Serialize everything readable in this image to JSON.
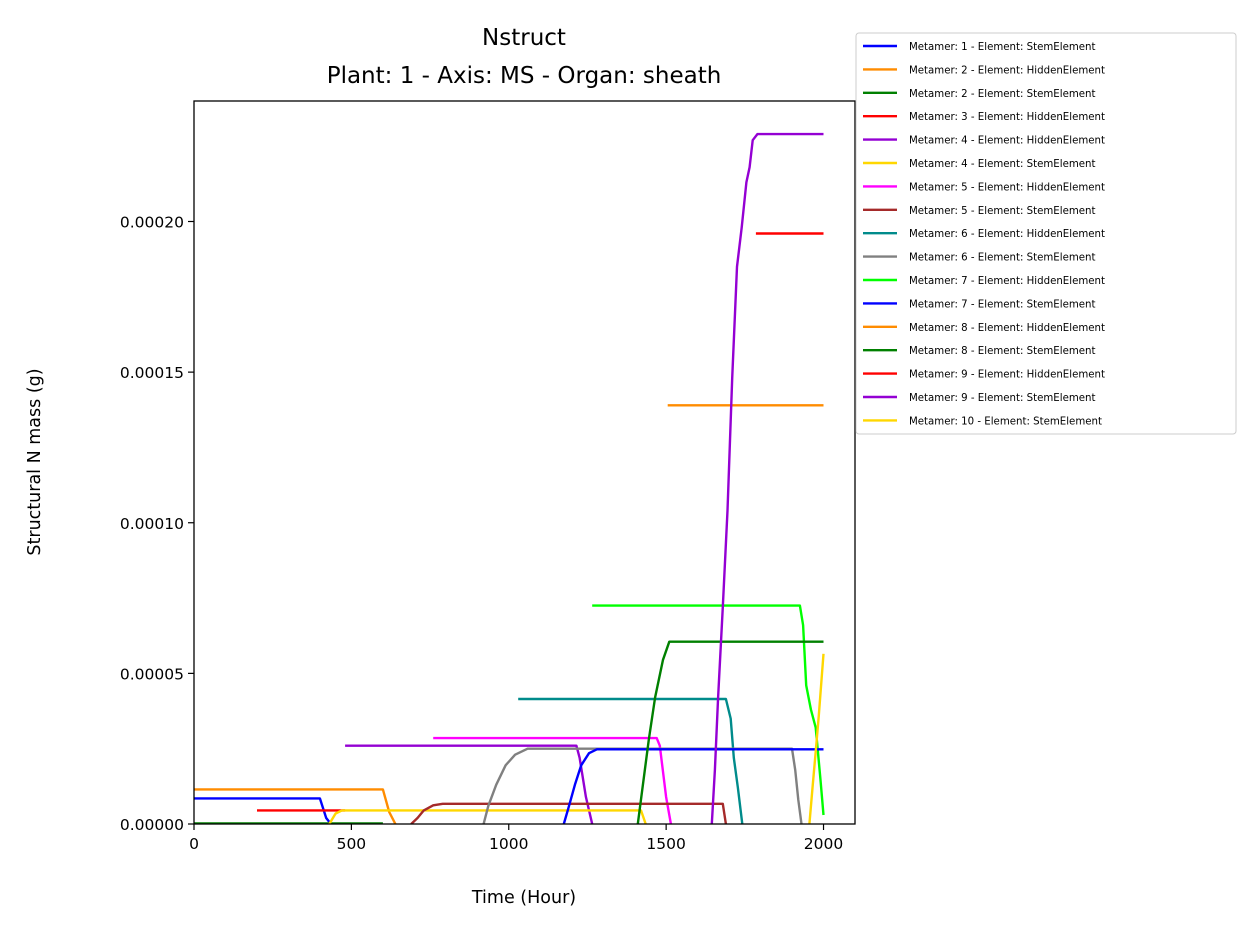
{
  "chart_data": {
    "type": "line",
    "title": "Nstruct",
    "subtitle": "Plant: 1 - Axis: MS - Organ: sheath",
    "xlabel": "Time (Hour)",
    "ylabel": "Structural N mass (g)",
    "xlim": [
      0,
      2100
    ],
    "ylim": [
      0,
      0.00024
    ],
    "xticks": [
      0,
      500,
      1000,
      1500,
      2000
    ],
    "xtick_labels": [
      "0",
      "500",
      "1000",
      "1500",
      "2000"
    ],
    "yticks": [
      0,
      5e-05,
      0.0001,
      0.00015,
      0.0002
    ],
    "ytick_labels": [
      "0.00000",
      "0.00005",
      "0.00010",
      "0.00015",
      "0.00020"
    ],
    "grid": false,
    "legend_position": "outside-top-right",
    "series": [
      {
        "name": "Metamer: 1 - Element: StemElement",
        "color": "#0000ff",
        "x": [
          0,
          400,
          420,
          435
        ],
        "y": [
          8.5e-06,
          8.5e-06,
          2e-06,
          0
        ]
      },
      {
        "name": "Metamer: 2 - Element: HiddenElement",
        "color": "#ff8c00",
        "x": [
          0,
          600,
          620,
          640
        ],
        "y": [
          1.15e-05,
          1.15e-05,
          4e-06,
          0
        ]
      },
      {
        "name": "Metamer: 2 - Element: StemElement",
        "color": "#008000",
        "x": [
          0,
          600
        ],
        "y": [
          2e-07,
          2e-07
        ]
      },
      {
        "name": "Metamer: 3 - Element: HiddenElement",
        "color": "#ff0000",
        "x": [
          200,
          480
        ],
        "y": [
          4.5e-06,
          4.5e-06
        ]
      },
      {
        "name": "Metamer: 4 - Element: HiddenElement",
        "color": "#9400d3",
        "x": [
          480,
          1215,
          1225,
          1245,
          1265
        ],
        "y": [
          2.6e-05,
          2.6e-05,
          2.2e-05,
          9e-06,
          0
        ]
      },
      {
        "name": "Metamer: 4 - Element: StemElement",
        "color": "#ffd700",
        "x": [
          430,
          450,
          470,
          1420,
          1435
        ],
        "y": [
          0,
          3.5e-06,
          4.5e-06,
          4.5e-06,
          0
        ]
      },
      {
        "name": "Metamer: 5 - Element: HiddenElement",
        "color": "#ff00ff",
        "x": [
          760,
          1470,
          1480,
          1500,
          1515
        ],
        "y": [
          2.85e-05,
          2.85e-05,
          2.6e-05,
          9e-06,
          0
        ]
      },
      {
        "name": "Metamer: 5 - Element: StemElement",
        "color": "#a52a2a",
        "x": [
          690,
          710,
          730,
          760,
          790,
          1680,
          1690
        ],
        "y": [
          0,
          2e-06,
          4.5e-06,
          6.2e-06,
          6.7e-06,
          6.7e-06,
          0
        ]
      },
      {
        "name": "Metamer: 6 - Element: HiddenElement",
        "color": "#008b8b",
        "x": [
          1030,
          1690,
          1705,
          1715,
          1728,
          1742
        ],
        "y": [
          4.15e-05,
          4.15e-05,
          3.5e-05,
          2.2e-05,
          1.2e-05,
          0
        ]
      },
      {
        "name": "Metamer: 6 - Element: StemElement",
        "color": "#808080",
        "x": [
          920,
          935,
          960,
          990,
          1020,
          1060,
          1200,
          1900,
          1910,
          1920,
          1930
        ],
        "y": [
          0,
          6e-06,
          1.3e-05,
          1.95e-05,
          2.3e-05,
          2.5e-05,
          2.5e-05,
          2.5e-05,
          1.8e-05,
          8e-06,
          0
        ]
      },
      {
        "name": "Metamer: 7 - Element: HiddenElement",
        "color": "#00ff00",
        "x": [
          1265,
          1925,
          1935,
          1945,
          1960,
          1975,
          1990,
          2000
        ],
        "y": [
          7.25e-05,
          7.25e-05,
          6.6e-05,
          4.6e-05,
          3.8e-05,
          3.2e-05,
          1.5e-05,
          3e-06
        ]
      },
      {
        "name": "Metamer: 7 - Element: StemElement",
        "color": "#0000ff",
        "x": [
          1175,
          1190,
          1210,
          1230,
          1255,
          1280,
          2000
        ],
        "y": [
          0,
          5.5e-06,
          1.3e-05,
          1.95e-05,
          2.35e-05,
          2.48e-05,
          2.48e-05
        ]
      },
      {
        "name": "Metamer: 8 - Element: HiddenElement",
        "color": "#ff8c00",
        "x": [
          1505,
          2000
        ],
        "y": [
          0.000139,
          0.000139
        ]
      },
      {
        "name": "Metamer: 8 - Element: StemElement",
        "color": "#008000",
        "x": [
          1410,
          1425,
          1445,
          1465,
          1490,
          1510,
          2000
        ],
        "y": [
          0,
          1.2e-05,
          2.8e-05,
          4.2e-05,
          5.45e-05,
          6.05e-05,
          6.05e-05
        ]
      },
      {
        "name": "Metamer: 9 - Element: HiddenElement",
        "color": "#ff0000",
        "x": [
          1785,
          2000
        ],
        "y": [
          0.000196,
          0.000196
        ]
      },
      {
        "name": "Metamer: 9 - Element: StemElement",
        "color": "#9400d3",
        "x": [
          1645,
          1655,
          1665,
          1680,
          1695,
          1710,
          1725,
          1740,
          1755,
          1765,
          1775,
          1790,
          2000
        ],
        "y": [
          0,
          1.8e-05,
          4.2e-05,
          7.2e-05,
          0.000104,
          0.000148,
          0.000185,
          0.000198,
          0.000213,
          0.000218,
          0.000227,
          0.000229,
          0.000229
        ]
      },
      {
        "name": "Metamer: 10 - Element: StemElement",
        "color": "#ffd700",
        "x": [
          1955,
          1965,
          1975,
          1985,
          2000
        ],
        "y": [
          0,
          1.2e-05,
          2.4e-05,
          3.6e-05,
          5.65e-05
        ]
      }
    ]
  }
}
